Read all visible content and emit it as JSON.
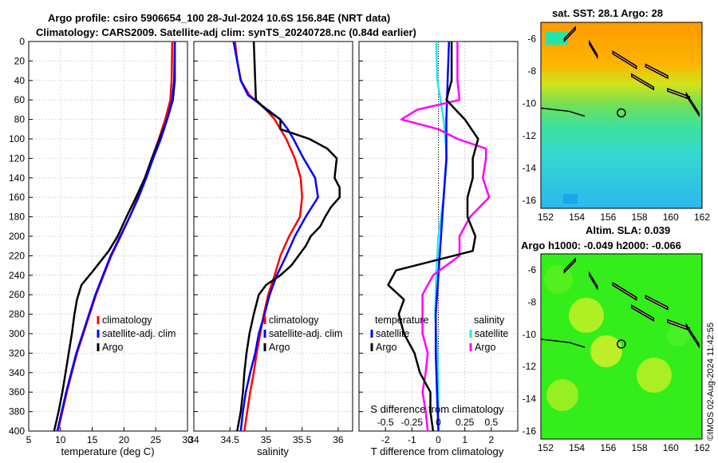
{
  "header": {
    "line1": "Argo profile: csiro 5906654_100 28-Jul-2024 10.6S 156.84E (NRT data)",
    "line2": "Climatology: CARS2009. Satellite-adj clim: synTS_20240728.nc (0.84d earlier)"
  },
  "credit": "©IMOS 02-Aug-2024 11:42:55",
  "colors": {
    "climatology": "#ff0000",
    "satellite": "#0000ff",
    "argo": "#000000",
    "sat_salinity": "#22e6f2",
    "argo_salinity": "#ff00ff"
  },
  "depth_axis": {
    "ticks": [
      0,
      20,
      40,
      60,
      80,
      100,
      120,
      140,
      160,
      180,
      200,
      220,
      240,
      260,
      280,
      300,
      320,
      340,
      360,
      380,
      400
    ],
    "range": [
      0,
      400
    ]
  },
  "chart_data": [
    {
      "type": "line",
      "name": "temperature",
      "xlabel": "temperature (deg C)",
      "xlim": [
        5,
        30
      ],
      "xticks": [
        5,
        10,
        15,
        20,
        25,
        30
      ],
      "legend": [
        "climatology",
        "satellite-adj. clim",
        "Argo"
      ],
      "series": [
        {
          "name": "climatology",
          "depth": [
            0,
            40,
            60,
            80,
            100,
            120,
            140,
            160,
            180,
            200,
            220,
            240,
            260,
            280,
            300,
            320,
            340,
            360,
            380,
            400
          ],
          "values": [
            27.6,
            27.5,
            27.3,
            26.5,
            25.5,
            24.4,
            23.3,
            22.2,
            20.9,
            19.5,
            18.0,
            16.8,
            15.6,
            14.6,
            13.6,
            12.6,
            11.8,
            11.0,
            10.3,
            9.6
          ]
        },
        {
          "name": "satellite-adj. clim",
          "depth": [
            0,
            40,
            60,
            80,
            100,
            120,
            140,
            160,
            180,
            200,
            220,
            240,
            260,
            280,
            300,
            320,
            340,
            360,
            380,
            400
          ],
          "values": [
            28.0,
            27.9,
            27.6,
            26.8,
            25.8,
            24.6,
            23.5,
            22.3,
            20.9,
            19.4,
            17.9,
            16.7,
            15.5,
            14.5,
            13.5,
            12.5,
            11.7,
            10.9,
            10.2,
            9.5
          ]
        },
        {
          "name": "Argo",
          "depth": [
            0,
            40,
            60,
            80,
            100,
            120,
            140,
            160,
            180,
            200,
            215,
            235,
            250,
            265,
            280,
            300,
            320,
            340,
            360,
            380,
            400
          ],
          "values": [
            28.0,
            28.0,
            27.7,
            26.8,
            25.6,
            24.4,
            23.3,
            21.9,
            20.4,
            19.0,
            17.6,
            15.2,
            13.3,
            12.6,
            12.2,
            11.8,
            11.3,
            10.8,
            10.3,
            9.7,
            9.0
          ]
        }
      ]
    },
    {
      "type": "line",
      "name": "salinity",
      "xlabel": "salinity",
      "xlim": [
        34,
        36.2
      ],
      "xticks": [
        34,
        34.5,
        35,
        35.5,
        36
      ],
      "legend": [
        "climatology",
        "satellite-adj. clim",
        "Argo"
      ],
      "series": [
        {
          "name": "climatology",
          "depth": [
            0,
            20,
            40,
            55,
            70,
            80,
            90,
            100,
            120,
            140,
            160,
            180,
            200,
            220,
            240,
            260,
            280,
            300,
            320,
            340,
            360,
            380,
            400
          ],
          "values": [
            34.57,
            34.6,
            34.65,
            34.77,
            35.0,
            35.12,
            35.2,
            35.28,
            35.4,
            35.48,
            35.5,
            35.47,
            35.32,
            35.2,
            35.12,
            35.03,
            34.97,
            34.92,
            34.87,
            34.83,
            34.78,
            34.74,
            34.7
          ]
        },
        {
          "name": "satellite-adj. clim",
          "depth": [
            0,
            20,
            40,
            55,
            70,
            80,
            90,
            100,
            120,
            140,
            160,
            180,
            200,
            220,
            240,
            260,
            280,
            300,
            320,
            340,
            360,
            380,
            400
          ],
          "values": [
            34.55,
            34.6,
            34.65,
            34.75,
            35.02,
            35.2,
            35.3,
            35.38,
            35.52,
            35.68,
            35.72,
            35.55,
            35.4,
            35.28,
            35.15,
            35.05,
            34.98,
            34.9,
            34.85,
            34.78,
            34.72,
            34.68,
            34.65
          ]
        },
        {
          "name": "Argo",
          "depth": [
            0,
            20,
            40,
            60,
            70,
            80,
            90,
            100,
            110,
            120,
            140,
            150,
            160,
            170,
            180,
            190,
            200,
            210,
            220,
            230,
            240,
            250,
            260,
            280,
            300,
            320,
            340,
            360,
            380,
            400
          ],
          "values": [
            34.83,
            34.84,
            34.85,
            34.86,
            35.0,
            35.2,
            35.2,
            35.6,
            35.85,
            35.98,
            35.95,
            36.02,
            36.02,
            35.9,
            35.82,
            35.75,
            35.62,
            35.55,
            35.45,
            35.35,
            35.2,
            35.0,
            34.9,
            34.83,
            34.77,
            34.73,
            34.7,
            34.68,
            34.65,
            34.6
          ]
        }
      ]
    },
    {
      "type": "line",
      "name": "difference",
      "xlabel": "T difference from climatology",
      "xlim": [
        -3,
        3
      ],
      "xticks": [
        -2,
        -1,
        0,
        1,
        2
      ],
      "top_label": "S difference from climatology",
      "top_ticks": [
        "-0.5",
        "-0.25",
        "0",
        "0.25",
        "0.5"
      ],
      "legend_left": [
        "temperature",
        "satellite",
        "Argo"
      ],
      "legend_right": [
        "salinity",
        "satellite",
        "Argo"
      ],
      "series": [
        {
          "name": "temperature satellite",
          "depth": [
            0,
            40,
            80,
            120,
            160,
            200,
            240,
            280,
            320,
            360,
            400
          ],
          "values": [
            0.4,
            0.35,
            0.3,
            0.3,
            0.2,
            0.1,
            0.0,
            -0.1,
            -0.1,
            -0.05,
            0.0
          ]
        },
        {
          "name": "temperature Argo",
          "depth": [
            0,
            40,
            60,
            80,
            100,
            120,
            140,
            160,
            180,
            200,
            215,
            235,
            250,
            265,
            280,
            300,
            320,
            340,
            360,
            380,
            400
          ],
          "values": [
            0.5,
            0.5,
            0.3,
            1.0,
            1.5,
            1.3,
            1.3,
            1.1,
            1.1,
            1.4,
            1.3,
            -1.6,
            -1.9,
            -1.3,
            -1.5,
            -1.3,
            -0.9,
            -0.7,
            -0.3,
            -0.3,
            -0.2
          ]
        },
        {
          "name": "salinity satellite",
          "depth": [
            0,
            40,
            80,
            120,
            160,
            200,
            240,
            280,
            320,
            360,
            400
          ],
          "values": [
            -0.02,
            -0.01,
            0.05,
            0.08,
            0.05,
            0.0,
            -0.02,
            -0.03,
            -0.01,
            0.0,
            0.0
          ]
        },
        {
          "name": "salinity Argo",
          "depth": [
            0,
            40,
            60,
            70,
            80,
            90,
            100,
            110,
            120,
            140,
            160,
            180,
            200,
            220,
            240,
            260,
            280,
            300,
            320,
            340,
            360,
            380,
            400
          ],
          "values": [
            0.18,
            0.18,
            0.2,
            -0.2,
            -0.35,
            0.0,
            0.18,
            0.45,
            0.45,
            0.42,
            0.48,
            0.3,
            0.2,
            0.2,
            -0.05,
            -0.15,
            -0.15,
            -0.15,
            -0.1,
            -0.12,
            -0.15,
            -0.12,
            -0.1
          ]
        }
      ]
    },
    {
      "type": "heatmap",
      "name": "sst_map",
      "title": "sat. SST: 28.1 Argo: 28",
      "xticks": [
        "152",
        "154",
        "156",
        "158",
        "160",
        "162"
      ],
      "yticks": [
        "-6",
        "-8",
        "-10",
        "-12",
        "-14",
        "-16"
      ],
      "lon_range": [
        151.7,
        162
      ],
      "lat_range": [
        -16.5,
        -5
      ],
      "argo_position": {
        "lon": 156.84,
        "lat": -10.6
      }
    },
    {
      "type": "heatmap",
      "name": "sla_map",
      "title_line1": "Altim. SLA: 0.039",
      "title_line2": "Argo h1000: -0.049 h2000: -0.066",
      "xticks": [
        "152",
        "154",
        "156",
        "158",
        "160",
        "162"
      ],
      "yticks": [
        "-6",
        "-8",
        "-10",
        "-12",
        "-14",
        "-16"
      ],
      "lon_range": [
        151.7,
        162
      ],
      "lat_range": [
        -16.5,
        -5
      ],
      "argo_position": {
        "lon": 156.84,
        "lat": -10.6
      }
    }
  ]
}
